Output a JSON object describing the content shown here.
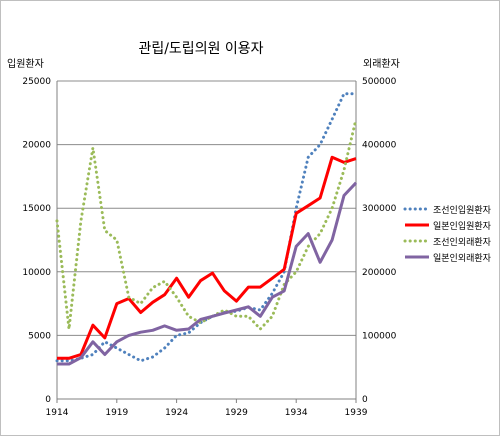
{
  "chart_data": {
    "type": "line",
    "title": "관립/도립의원 이용자",
    "left_axis_label": "입원환자",
    "right_axis_label": "외래환자",
    "x_ticks": [
      1914,
      1919,
      1924,
      1929,
      1934,
      1939
    ],
    "left_ylim": [
      0,
      25000
    ],
    "left_ticks": [
      0,
      5000,
      10000,
      15000,
      20000,
      25000
    ],
    "right_ylim": [
      0,
      500000
    ],
    "right_ticks": [
      0,
      100000,
      200000,
      300000,
      400000,
      500000
    ],
    "grid": true,
    "legend_position": "right",
    "series": [
      {
        "name": "조선인입원환자",
        "axis": "left",
        "color": "#4f81bd",
        "dash": "dotted",
        "x": [
          1914,
          1915,
          1916,
          1917,
          1918,
          1919,
          1920,
          1921,
          1922,
          1923,
          1924,
          1925,
          1926,
          1927,
          1928,
          1929,
          1930,
          1931,
          1932,
          1933,
          1934,
          1935,
          1936,
          1937,
          1938,
          1939
        ],
        "values": [
          3000,
          3000,
          3200,
          3500,
          4500,
          4000,
          3500,
          3000,
          3300,
          4000,
          5000,
          5200,
          6000,
          6500,
          6800,
          6900,
          7200,
          7000,
          8300,
          10000,
          15000,
          19000,
          20000,
          22000,
          24000,
          24000
        ]
      },
      {
        "name": "일본인입원환자",
        "axis": "left",
        "color": "#ff0000",
        "dash": "solid",
        "x": [
          1914,
          1915,
          1916,
          1917,
          1918,
          1919,
          1920,
          1921,
          1922,
          1923,
          1924,
          1925,
          1926,
          1927,
          1928,
          1929,
          1930,
          1931,
          1932,
          1933,
          1934,
          1935,
          1936,
          1937,
          1938,
          1939
        ],
        "values": [
          3200,
          3200,
          3500,
          5800,
          4800,
          7500,
          7900,
          6800,
          7600,
          8200,
          9500,
          8000,
          9300,
          9900,
          8500,
          7700,
          8800,
          8800,
          9500,
          10200,
          14600,
          15200,
          15800,
          19000,
          18600,
          18900
        ]
      },
      {
        "name": "조선인외래환자",
        "axis": "right",
        "color": "#9bbb59",
        "dash": "dotted",
        "x": [
          1914,
          1915,
          1916,
          1917,
          1918,
          1919,
          1920,
          1921,
          1922,
          1923,
          1924,
          1925,
          1926,
          1927,
          1928,
          1929,
          1930,
          1931,
          1932,
          1933,
          1934,
          1935,
          1936,
          1937,
          1938,
          1939
        ],
        "values": [
          280000,
          110000,
          280000,
          395000,
          265000,
          250000,
          160000,
          150000,
          175000,
          185000,
          160000,
          130000,
          120000,
          130000,
          140000,
          130000,
          130000,
          110000,
          130000,
          180000,
          200000,
          240000,
          260000,
          300000,
          360000,
          440000
        ]
      },
      {
        "name": "일본인외래환자",
        "axis": "right",
        "color": "#8064a2",
        "dash": "solid",
        "x": [
          1914,
          1915,
          1916,
          1917,
          1918,
          1919,
          1920,
          1921,
          1922,
          1923,
          1924,
          1925,
          1926,
          1927,
          1928,
          1929,
          1930,
          1931,
          1932,
          1933,
          1934,
          1935,
          1936,
          1937,
          1938,
          1939
        ],
        "values": [
          55000,
          55000,
          65000,
          90000,
          70000,
          90000,
          100000,
          105000,
          108000,
          115000,
          108000,
          110000,
          125000,
          130000,
          135000,
          140000,
          145000,
          130000,
          160000,
          170000,
          240000,
          260000,
          215000,
          250000,
          320000,
          340000
        ]
      }
    ]
  }
}
